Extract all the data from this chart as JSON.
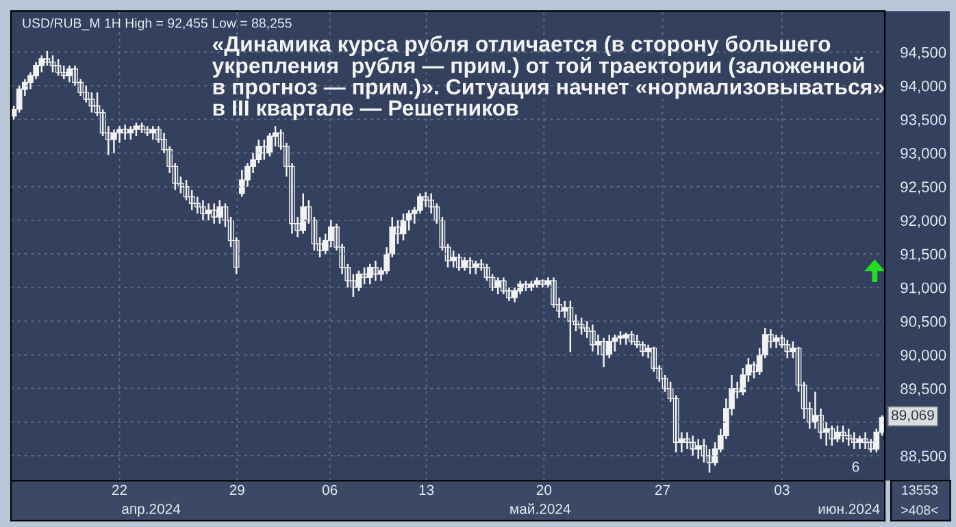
{
  "chart_data": {
    "type": "candlestick",
    "title": "«Динамика курса рубля отличается (в сторону большего\nукрепления  рубля — прим.) от той траектории (заложенной\nв прогноз — прим.)». Ситуация начнет «нормализовываться»\nв III квартале — Решетников",
    "annotations": [
      "USD/RUB_M 1H High = 92,455 Low = 88,255",
      "22",
      "29",
      "06",
      "13",
      "20",
      "27",
      "03",
      "апр.2024",
      "май.2024",
      "июн.2024",
      "6",
      "13553",
      ">408<",
      "89,069"
    ],
    "categories": [
      null,
      null,
      null,
      null,
      null,
      null,
      null,
      null,
      null,
      null,
      null,
      null,
      null,
      null,
      null,
      null,
      null,
      null,
      null,
      null,
      null,
      null,
      null,
      null,
      null,
      null,
      null,
      null,
      null,
      null,
      null,
      null,
      null,
      null,
      null,
      null,
      null,
      null,
      null,
      null,
      null,
      null,
      null,
      null,
      null,
      null,
      null,
      null,
      null,
      null,
      null,
      null,
      null,
      null,
      null,
      null,
      null,
      null,
      null,
      null,
      null,
      null,
      null,
      null,
      null,
      null,
      null,
      null,
      null,
      null,
      null,
      null,
      null,
      null,
      null,
      null,
      null,
      null,
      null,
      null,
      null,
      null,
      null,
      null,
      null,
      null,
      null,
      null,
      null,
      null,
      null,
      null,
      null,
      null,
      null,
      null,
      null,
      null,
      null,
      null,
      null,
      null,
      null,
      null,
      null,
      null,
      null,
      null,
      null,
      null,
      null,
      null,
      null,
      null,
      null,
      null,
      null,
      null,
      null,
      null,
      null,
      null,
      null,
      null,
      null,
      null,
      null,
      null,
      null,
      null,
      null,
      null,
      null,
      null,
      null,
      null,
      null,
      null,
      null,
      null,
      null,
      null,
      null,
      null,
      null,
      null,
      null,
      null,
      null,
      null,
      null,
      null,
      null,
      null,
      null,
      null,
      null
    ],
    "ohlc": [
      [
        93550,
        93700,
        93500,
        93650
      ],
      [
        93650,
        94000,
        93600,
        93950
      ],
      [
        93950,
        94100,
        93850,
        94050
      ],
      [
        94050,
        94200,
        93950,
        94150
      ],
      [
        94150,
        94350,
        94100,
        94300
      ],
      [
        94300,
        94450,
        94200,
        94400
      ],
      [
        94400,
        94520,
        94300,
        94350
      ],
      [
        94350,
        94450,
        94200,
        94300
      ],
      [
        94300,
        94400,
        94150,
        94200
      ],
      [
        94200,
        94300,
        94100,
        94150
      ],
      [
        94150,
        94300,
        94050,
        94250
      ],
      [
        94250,
        94300,
        94000,
        94050
      ],
      [
        94050,
        94100,
        93850,
        93900
      ],
      [
        93900,
        94000,
        93750,
        93800
      ],
      [
        93800,
        93900,
        93600,
        93700
      ],
      [
        93700,
        93900,
        93550,
        93600
      ],
      [
        93600,
        93650,
        93250,
        93300
      ],
      [
        93300,
        93400,
        92970,
        93200
      ],
      [
        93200,
        93350,
        93000,
        93300
      ],
      [
        93300,
        93400,
        93150,
        93350
      ],
      [
        93350,
        93420,
        93200,
        93300
      ],
      [
        93300,
        93400,
        93200,
        93350
      ],
      [
        93350,
        93450,
        93250,
        93400
      ],
      [
        93400,
        93450,
        93300,
        93350
      ],
      [
        93350,
        93400,
        93250,
        93300
      ],
      [
        93300,
        93400,
        93200,
        93350
      ],
      [
        93350,
        93400,
        93150,
        93200
      ],
      [
        93200,
        93300,
        93000,
        93050
      ],
      [
        93050,
        93100,
        92700,
        92800
      ],
      [
        92800,
        92850,
        92450,
        92550
      ],
      [
        92550,
        92650,
        92400,
        92500
      ],
      [
        92500,
        92600,
        92300,
        92350
      ],
      [
        92350,
        92450,
        92150,
        92250
      ],
      [
        92250,
        92350,
        92100,
        92200
      ],
      [
        92200,
        92300,
        92000,
        92100
      ],
      [
        92100,
        92250,
        92000,
        92150
      ],
      [
        92150,
        92250,
        91950,
        92050
      ],
      [
        92050,
        92300,
        91950,
        92200
      ],
      [
        92200,
        92250,
        91900,
        92000
      ],
      [
        92000,
        92050,
        91600,
        91700
      ],
      [
        91700,
        91750,
        91200,
        91300
      ],
      [
        92400,
        92750,
        92350,
        92600
      ],
      [
        92600,
        92850,
        92500,
        92800
      ],
      [
        92800,
        93000,
        92700,
        92900
      ],
      [
        92900,
        93200,
        92850,
        93100
      ],
      [
        93100,
        93200,
        92900,
        93000
      ],
      [
        93000,
        93300,
        92950,
        93250
      ],
      [
        93250,
        93400,
        93100,
        93300
      ],
      [
        93300,
        93350,
        93050,
        93100
      ],
      [
        93100,
        93150,
        92650,
        92800
      ],
      [
        92800,
        92850,
        91800,
        91950
      ],
      [
        91950,
        92050,
        91750,
        91850
      ],
      [
        91850,
        92400,
        91800,
        92200
      ],
      [
        92200,
        92300,
        91950,
        92000
      ],
      [
        92000,
        92050,
        91550,
        91650
      ],
      [
        91650,
        91750,
        91450,
        91550
      ],
      [
        91550,
        91800,
        91500,
        91700
      ],
      [
        91700,
        92000,
        91600,
        91900
      ],
      [
        91900,
        91950,
        91550,
        91600
      ],
      [
        91600,
        91650,
        91200,
        91300
      ],
      [
        91300,
        91350,
        91000,
        91100
      ],
      [
        91100,
        91200,
        90860,
        91000
      ],
      [
        91000,
        91250,
        90950,
        91200
      ],
      [
        91200,
        91300,
        91050,
        91150
      ],
      [
        91150,
        91350,
        91050,
        91300
      ],
      [
        91300,
        91400,
        91100,
        91200
      ],
      [
        91200,
        91300,
        91100,
        91250
      ],
      [
        91250,
        91600,
        91200,
        91500
      ],
      [
        91500,
        92050,
        91450,
        91900
      ],
      [
        91900,
        92000,
        91650,
        91800
      ],
      [
        91800,
        92100,
        91700,
        92000
      ],
      [
        92000,
        92150,
        91850,
        92100
      ],
      [
        92100,
        92200,
        91950,
        92150
      ],
      [
        92150,
        92400,
        92100,
        92350
      ],
      [
        92350,
        92420,
        92200,
        92300
      ],
      [
        92300,
        92400,
        92100,
        92200
      ],
      [
        92200,
        92250,
        91950,
        92000
      ],
      [
        92000,
        92050,
        91550,
        91600
      ],
      [
        91600,
        91650,
        91300,
        91400
      ],
      [
        91400,
        91550,
        91300,
        91450
      ],
      [
        91450,
        91500,
        91250,
        91300
      ],
      [
        91300,
        91450,
        91250,
        91400
      ],
      [
        91400,
        91450,
        91200,
        91300
      ],
      [
        91300,
        91400,
        91200,
        91350
      ],
      [
        91350,
        91420,
        91250,
        91300
      ],
      [
        91300,
        91350,
        91100,
        91150
      ],
      [
        91150,
        91200,
        90950,
        91000
      ],
      [
        91000,
        91150,
        90900,
        91100
      ],
      [
        91100,
        91150,
        90900,
        90950
      ],
      [
        90950,
        91000,
        90800,
        90850
      ],
      [
        90850,
        91000,
        90780,
        90950
      ],
      [
        90950,
        91100,
        90900,
        91050
      ],
      [
        91050,
        91100,
        90950,
        91000
      ],
      [
        91000,
        91100,
        90950,
        91050
      ],
      [
        91050,
        91150,
        91000,
        91100
      ],
      [
        91100,
        91120,
        91000,
        91050
      ],
      [
        91050,
        91150,
        91000,
        91100
      ],
      [
        91100,
        91150,
        90700,
        90750
      ],
      [
        90750,
        90850,
        90550,
        90650
      ],
      [
        90650,
        90800,
        90550,
        90700
      ],
      [
        90700,
        90800,
        90040,
        90500
      ],
      [
        90500,
        90600,
        90350,
        90450
      ],
      [
        90450,
        90550,
        90300,
        90400
      ],
      [
        90400,
        90500,
        90250,
        90350
      ],
      [
        90350,
        90450,
        90050,
        90150
      ],
      [
        90150,
        90300,
        90000,
        90200
      ],
      [
        90200,
        90250,
        89820,
        90000
      ],
      [
        90000,
        90300,
        89950,
        90200
      ],
      [
        90200,
        90300,
        90050,
        90250
      ],
      [
        90250,
        90350,
        90150,
        90280
      ],
      [
        90250,
        90330,
        90150,
        90300
      ],
      [
        90300,
        90350,
        90150,
        90200
      ],
      [
        90200,
        90300,
        90100,
        90150
      ],
      [
        90150,
        90200,
        89980,
        90050
      ],
      [
        90050,
        90150,
        89950,
        90100
      ],
      [
        90100,
        90120,
        89750,
        89800
      ],
      [
        89800,
        89850,
        89600,
        89650
      ],
      [
        89650,
        89700,
        89450,
        89500
      ],
      [
        89500,
        89600,
        89300,
        89350
      ],
      [
        89350,
        89400,
        88550,
        88700
      ],
      [
        88700,
        88850,
        88550,
        88750
      ],
      [
        88750,
        88850,
        88600,
        88700
      ],
      [
        88700,
        88800,
        88500,
        88600
      ],
      [
        88600,
        88750,
        88450,
        88650
      ],
      [
        88650,
        88750,
        88400,
        88500
      ],
      [
        88500,
        88600,
        88250,
        88400
      ],
      [
        88400,
        88700,
        88350,
        88600
      ],
      [
        88600,
        88900,
        88550,
        88800
      ],
      [
        88800,
        89350,
        88750,
        89200
      ],
      [
        89200,
        89700,
        89100,
        89500
      ],
      [
        89500,
        89600,
        89350,
        89450
      ],
      [
        89450,
        89800,
        89400,
        89700
      ],
      [
        89700,
        89950,
        89600,
        89850
      ],
      [
        89850,
        89900,
        89650,
        89750
      ],
      [
        89750,
        90100,
        89700,
        90000
      ],
      [
        90000,
        90400,
        89950,
        90300
      ],
      [
        90300,
        90380,
        90100,
        90200
      ],
      [
        90200,
        90300,
        90100,
        90250
      ],
      [
        90250,
        90300,
        90100,
        90150
      ],
      [
        90150,
        90220,
        89950,
        90050
      ],
      [
        90050,
        90200,
        89950,
        90100
      ],
      [
        90100,
        90120,
        89450,
        89550
      ],
      [
        89550,
        89600,
        89050,
        89200
      ],
      [
        89200,
        89300,
        88900,
        89000
      ],
      [
        89000,
        89450,
        88900,
        89100
      ],
      [
        89100,
        89200,
        88750,
        88850
      ],
      [
        88850,
        89000,
        88650,
        88900
      ],
      [
        88900,
        88950,
        88650,
        88750
      ],
      [
        88750,
        88950,
        88700,
        88850
      ],
      [
        88850,
        88950,
        88700,
        88800
      ],
      [
        88800,
        88900,
        88650,
        88750
      ],
      [
        88750,
        88850,
        88600,
        88700
      ],
      [
        88700,
        88800,
        88600,
        88750
      ],
      [
        88750,
        88850,
        88600,
        88700
      ],
      [
        88700,
        88750,
        88550,
        88600
      ],
      [
        88600,
        88900,
        88550,
        88850
      ],
      [
        88850,
        89100,
        88800,
        89069
      ]
    ],
    "ylim": [
      88130,
      95110
    ],
    "yticks": [
      {
        "value": 88500,
        "label": "88,500"
      },
      {
        "value": 89000,
        "label": null
      },
      {
        "value": 89500,
        "label": "89,500"
      },
      {
        "value": 90000,
        "label": "90,000"
      },
      {
        "value": 90500,
        "label": "90,500"
      },
      {
        "value": 91000,
        "label": "91,000"
      },
      {
        "value": 91500,
        "label": "91,500"
      },
      {
        "value": 92000,
        "label": "92,000"
      },
      {
        "value": 92500,
        "label": "92,500"
      },
      {
        "value": 93000,
        "label": "93,000"
      },
      {
        "value": 93500,
        "label": "93,500"
      },
      {
        "value": 94000,
        "label": "94,000"
      },
      {
        "value": 94500,
        "label": "94,500"
      }
    ],
    "grid": true
  }
}
